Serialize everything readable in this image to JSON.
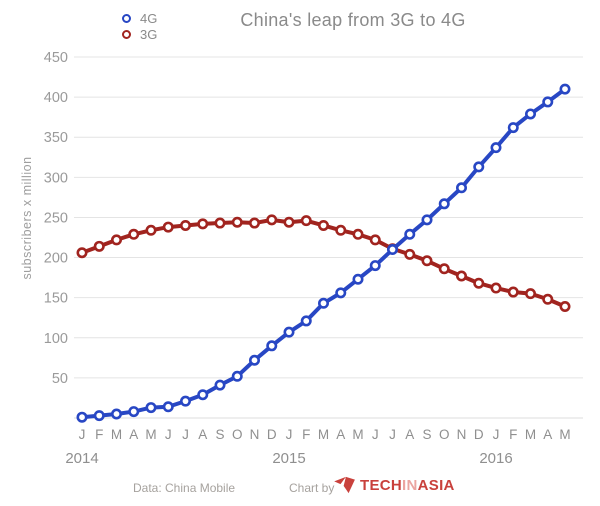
{
  "chart_data": {
    "type": "line",
    "title": "China's leap from 3G to 4G",
    "ylabel": "subscribers x million",
    "ylim": [
      0,
      450
    ],
    "yticks": [
      50,
      100,
      150,
      200,
      250,
      300,
      350,
      400,
      450
    ],
    "grid": "horizontal",
    "legend_position": "top-left",
    "x_months": [
      "J",
      "F",
      "M",
      "A",
      "M",
      "J",
      "J",
      "A",
      "S",
      "O",
      "N",
      "D",
      "J",
      "F",
      "M",
      "A",
      "M",
      "J",
      "J",
      "A",
      "S",
      "O",
      "N",
      "D",
      "J",
      "F",
      "M",
      "A",
      "M"
    ],
    "years": [
      {
        "label": "2014",
        "month_index": 0
      },
      {
        "label": "2015",
        "month_index": 12
      },
      {
        "label": "2016",
        "month_index": 24
      }
    ],
    "series": [
      {
        "name": "4G",
        "color": "#2847c4",
        "values": [
          1,
          3,
          5,
          8,
          13,
          14,
          21,
          29,
          41,
          52,
          72,
          90,
          107,
          121,
          143,
          156,
          173,
          190,
          210,
          229,
          247,
          267,
          287,
          313,
          337,
          362,
          379,
          394,
          410
        ]
      },
      {
        "name": "3G",
        "color": "#a1241f",
        "values": [
          206,
          214,
          222,
          229,
          234,
          238,
          240,
          242,
          243,
          244,
          243,
          247,
          244,
          246,
          240,
          234,
          229,
          222,
          211,
          204,
          196,
          186,
          177,
          168,
          162,
          157,
          155,
          148,
          139
        ]
      }
    ]
  },
  "footer": {
    "source": "Data: China Mobile",
    "credit": "Chart by",
    "logo": {
      "part1": "TECH",
      "part2": "IN",
      "part3": "ASIA"
    }
  },
  "colors": {
    "accent_4g": "#2847c4",
    "accent_3g": "#a1241f",
    "gridline": "#e4e4e4",
    "text_gray": "#8f8f8f",
    "logo_red": "#c9413c"
  }
}
